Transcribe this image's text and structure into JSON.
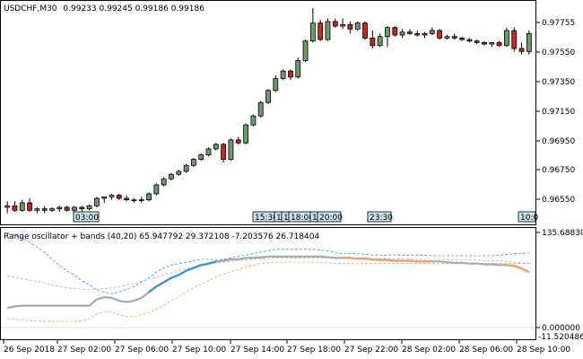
{
  "header": {
    "symbol": "USDCHF,M30",
    "ohlc": "0.99233 0.99245 0.99186 0.99186"
  },
  "indicator": {
    "label": "Range oscillator + bands (40,20) 65.947792 29.372108 -7.203576 26.718404"
  },
  "colors": {
    "bull": "#6b9b6b",
    "bear": "#cc2222",
    "upper_band": "#3b8ed8",
    "lower_band": "#f0a060",
    "mid_band": "#b0b0b0",
    "osc": "#a8a8a8",
    "osc_up": "#3b8ed8",
    "osc_down": "#f0a060",
    "marker_fill": "#c6e4ec"
  },
  "price_axis": {
    "ticks": [
      "0.97755",
      "0.97550",
      "0.97350",
      "0.97150",
      "0.96950",
      "0.96750",
      "0.96550"
    ]
  },
  "indicator_axis": {
    "top": "135.688305",
    "bottom": "0.000000",
    "lower": "-11.520486"
  },
  "time_axis": {
    "labels": [
      "26 Sep 2018",
      "27 Sep 02:00",
      "27 Sep 06:00",
      "27 Sep 10:00",
      "27 Sep 14:00",
      "27 Sep 18:00",
      "27 Sep 22:00",
      "28 Sep 02:00",
      "28 Sep 06:00",
      "28 Sep 10:00"
    ]
  },
  "time_markers": [
    "03:00",
    "15:30",
    "1",
    "1",
    "18:00",
    "1",
    "20:00",
    "23:30",
    "10:0"
  ],
  "chart_data": [
    {
      "type": "candlestick",
      "title": "USDCHF,M30",
      "candles": [
        {
          "o": 0.9654,
          "h": 0.9658,
          "l": 0.965,
          "c": 0.9655
        },
        {
          "o": 0.9655,
          "h": 0.9658,
          "l": 0.9651,
          "c": 0.9652
        },
        {
          "o": 0.9652,
          "h": 0.9659,
          "l": 0.9651,
          "c": 0.9657
        },
        {
          "o": 0.9657,
          "h": 0.966,
          "l": 0.9651,
          "c": 0.9652
        },
        {
          "o": 0.9652,
          "h": 0.9654,
          "l": 0.965,
          "c": 0.9653
        },
        {
          "o": 0.9653,
          "h": 0.9655,
          "l": 0.965,
          "c": 0.9652
        },
        {
          "o": 0.9652,
          "h": 0.9654,
          "l": 0.9651,
          "c": 0.9653
        },
        {
          "o": 0.9653,
          "h": 0.9655,
          "l": 0.9651,
          "c": 0.9654
        },
        {
          "o": 0.9654,
          "h": 0.9655,
          "l": 0.9651,
          "c": 0.9652
        },
        {
          "o": 0.9652,
          "h": 0.9655,
          "l": 0.9651,
          "c": 0.9654
        },
        {
          "o": 0.9654,
          "h": 0.9655,
          "l": 0.9651,
          "c": 0.9653
        },
        {
          "o": 0.9653,
          "h": 0.9656,
          "l": 0.9652,
          "c": 0.9655
        },
        {
          "o": 0.9655,
          "h": 0.9661,
          "l": 0.9654,
          "c": 0.966
        },
        {
          "o": 0.966,
          "h": 0.9661,
          "l": 0.9657,
          "c": 0.9661
        },
        {
          "o": 0.9661,
          "h": 0.9663,
          "l": 0.9659,
          "c": 0.9662
        },
        {
          "o": 0.9662,
          "h": 0.9663,
          "l": 0.9659,
          "c": 0.966
        },
        {
          "o": 0.966,
          "h": 0.9662,
          "l": 0.9658,
          "c": 0.9659
        },
        {
          "o": 0.9659,
          "h": 0.966,
          "l": 0.9657,
          "c": 0.9659
        },
        {
          "o": 0.9659,
          "h": 0.9661,
          "l": 0.9657,
          "c": 0.9659
        },
        {
          "o": 0.9659,
          "h": 0.9664,
          "l": 0.9658,
          "c": 0.9663
        },
        {
          "o": 0.9663,
          "h": 0.967,
          "l": 0.9662,
          "c": 0.9669
        },
        {
          "o": 0.9669,
          "h": 0.9674,
          "l": 0.9668,
          "c": 0.9673
        },
        {
          "o": 0.9673,
          "h": 0.9677,
          "l": 0.9672,
          "c": 0.9676
        },
        {
          "o": 0.9676,
          "h": 0.9679,
          "l": 0.9675,
          "c": 0.9678
        },
        {
          "o": 0.9678,
          "h": 0.9683,
          "l": 0.9677,
          "c": 0.9682
        },
        {
          "o": 0.9682,
          "h": 0.9687,
          "l": 0.9681,
          "c": 0.9686
        },
        {
          "o": 0.9686,
          "h": 0.969,
          "l": 0.9685,
          "c": 0.9689
        },
        {
          "o": 0.9689,
          "h": 0.9694,
          "l": 0.9688,
          "c": 0.9693
        },
        {
          "o": 0.9693,
          "h": 0.9697,
          "l": 0.9692,
          "c": 0.9696
        },
        {
          "o": 0.9696,
          "h": 0.9697,
          "l": 0.9684,
          "c": 0.9686
        },
        {
          "o": 0.9686,
          "h": 0.97,
          "l": 0.9685,
          "c": 0.9699
        },
        {
          "o": 0.9699,
          "h": 0.9701,
          "l": 0.9696,
          "c": 0.9697
        },
        {
          "o": 0.9697,
          "h": 0.971,
          "l": 0.9696,
          "c": 0.9709
        },
        {
          "o": 0.9709,
          "h": 0.9716,
          "l": 0.9708,
          "c": 0.9715
        },
        {
          "o": 0.9715,
          "h": 0.9725,
          "l": 0.9714,
          "c": 0.9724
        },
        {
          "o": 0.9724,
          "h": 0.9733,
          "l": 0.9723,
          "c": 0.9732
        },
        {
          "o": 0.9732,
          "h": 0.9742,
          "l": 0.9731,
          "c": 0.974
        },
        {
          "o": 0.974,
          "h": 0.9746,
          "l": 0.9739,
          "c": 0.9745
        },
        {
          "o": 0.9745,
          "h": 0.9746,
          "l": 0.9739,
          "c": 0.9741
        },
        {
          "o": 0.9741,
          "h": 0.9754,
          "l": 0.974,
          "c": 0.9752
        },
        {
          "o": 0.9752,
          "h": 0.9766,
          "l": 0.9751,
          "c": 0.9765
        },
        {
          "o": 0.9765,
          "h": 0.9787,
          "l": 0.9764,
          "c": 0.9777
        },
        {
          "o": 0.9777,
          "h": 0.9779,
          "l": 0.9765,
          "c": 0.9766
        },
        {
          "o": 0.9766,
          "h": 0.978,
          "l": 0.9765,
          "c": 0.9778
        },
        {
          "o": 0.9778,
          "h": 0.978,
          "l": 0.9774,
          "c": 0.9775
        },
        {
          "o": 0.9775,
          "h": 0.978,
          "l": 0.9773,
          "c": 0.9776
        },
        {
          "o": 0.9776,
          "h": 0.9778,
          "l": 0.977,
          "c": 0.9773
        },
        {
          "o": 0.9773,
          "h": 0.9778,
          "l": 0.9772,
          "c": 0.9777
        },
        {
          "o": 0.9777,
          "h": 0.9778,
          "l": 0.9766,
          "c": 0.9767
        },
        {
          "o": 0.9767,
          "h": 0.9772,
          "l": 0.976,
          "c": 0.9762
        },
        {
          "o": 0.9762,
          "h": 0.977,
          "l": 0.9761,
          "c": 0.9768
        },
        {
          "o": 0.9768,
          "h": 0.9775,
          "l": 0.9761,
          "c": 0.9774
        },
        {
          "o": 0.9774,
          "h": 0.9775,
          "l": 0.9768,
          "c": 0.9769
        },
        {
          "o": 0.9769,
          "h": 0.9773,
          "l": 0.9767,
          "c": 0.9771
        },
        {
          "o": 0.9771,
          "h": 0.9773,
          "l": 0.9769,
          "c": 0.977
        },
        {
          "o": 0.977,
          "h": 0.9772,
          "l": 0.9768,
          "c": 0.9769
        },
        {
          "o": 0.9769,
          "h": 0.9771,
          "l": 0.9767,
          "c": 0.977
        },
        {
          "o": 0.977,
          "h": 0.9774,
          "l": 0.9769,
          "c": 0.9772
        },
        {
          "o": 0.9772,
          "h": 0.9773,
          "l": 0.9766,
          "c": 0.9767
        },
        {
          "o": 0.9767,
          "h": 0.9769,
          "l": 0.9766,
          "c": 0.9768
        },
        {
          "o": 0.9768,
          "h": 0.977,
          "l": 0.9766,
          "c": 0.9767
        },
        {
          "o": 0.9767,
          "h": 0.9768,
          "l": 0.9765,
          "c": 0.9766
        },
        {
          "o": 0.9766,
          "h": 0.9767,
          "l": 0.9764,
          "c": 0.9765
        },
        {
          "o": 0.9765,
          "h": 0.9766,
          "l": 0.9763,
          "c": 0.9764
        },
        {
          "o": 0.9764,
          "h": 0.9765,
          "l": 0.9762,
          "c": 0.9763
        },
        {
          "o": 0.9763,
          "h": 0.9764,
          "l": 0.9761,
          "c": 0.9764
        },
        {
          "o": 0.9764,
          "h": 0.9765,
          "l": 0.9761,
          "c": 0.9762
        },
        {
          "o": 0.9762,
          "h": 0.9774,
          "l": 0.9761,
          "c": 0.9772
        },
        {
          "o": 0.9772,
          "h": 0.9774,
          "l": 0.9758,
          "c": 0.976
        },
        {
          "o": 0.976,
          "h": 0.9764,
          "l": 0.9756,
          "c": 0.9758
        },
        {
          "o": 0.9758,
          "h": 0.9772,
          "l": 0.9756,
          "c": 0.977
        }
      ],
      "ylim": [
        0.9645,
        0.979
      ]
    },
    {
      "type": "line",
      "title": "Range oscillator + bands (40,20)",
      "ylim": [
        -11.520486,
        135.688305
      ],
      "series": [
        {
          "role": "oscillator",
          "values": [
            30,
            32,
            33,
            33,
            33,
            33,
            33,
            33,
            33,
            33,
            33,
            33,
            42,
            45,
            44,
            40,
            38,
            40,
            44,
            52,
            60,
            66,
            72,
            76,
            82,
            86,
            90,
            92,
            95,
            96,
            98,
            98,
            100,
            100,
            101,
            102,
            102,
            102,
            102,
            102,
            102,
            102,
            102,
            101,
            100,
            100,
            100,
            99,
            99,
            98,
            97,
            97,
            96,
            96,
            96,
            95,
            95,
            95,
            95,
            94,
            93,
            93,
            92,
            92,
            91,
            91,
            90,
            90,
            89,
            85,
            80
          ]
        },
        {
          "role": "upper band",
          "values": [
            135,
            132,
            128,
            122,
            115,
            108,
            98,
            90,
            82,
            76,
            68,
            62,
            55,
            52,
            50,
            52,
            56,
            60,
            66,
            72,
            80,
            86,
            90,
            92,
            94,
            96,
            98,
            98,
            98,
            98,
            100,
            102,
            104,
            106,
            108,
            110,
            112,
            112,
            112,
            112,
            112,
            112,
            111,
            110,
            108,
            106,
            106,
            106,
            105,
            104,
            104,
            104,
            104,
            104,
            104,
            104,
            104,
            103,
            103,
            103,
            103,
            103,
            103,
            103,
            103,
            103,
            104,
            105,
            106,
            106,
            107
          ]
        },
        {
          "role": "middle band",
          "values": [
            75,
            73,
            71,
            69,
            67,
            65,
            62,
            60,
            58,
            57,
            56,
            55,
            56,
            57,
            58,
            60,
            62,
            64,
            67,
            70,
            73,
            76,
            79,
            82,
            85,
            87,
            89,
            91,
            93,
            94,
            95,
            96,
            97,
            98,
            99,
            99,
            100,
            100,
            100,
            100,
            100,
            100,
            100,
            100,
            100,
            100,
            100,
            100,
            100,
            99,
            99,
            99,
            99,
            99,
            99,
            98,
            98,
            98,
            98,
            98,
            97,
            97,
            97,
            97,
            96,
            96,
            96,
            95,
            94,
            93,
            92
          ]
        },
        {
          "role": "lower band",
          "values": [
            15,
            14,
            13,
            12,
            12,
            11,
            11,
            11,
            11,
            11,
            12,
            14,
            22,
            24,
            24,
            20,
            18,
            18,
            20,
            24,
            28,
            34,
            40,
            46,
            52,
            58,
            63,
            68,
            73,
            77,
            81,
            84,
            87,
            90,
            92,
            93,
            94,
            94,
            94,
            94,
            94,
            94,
            94,
            93,
            92,
            92,
            92,
            92,
            92,
            92,
            92,
            92,
            92,
            92,
            92,
            92,
            92,
            92,
            92,
            92,
            92,
            92,
            92,
            92,
            92,
            92,
            92,
            92,
            92,
            92,
            92
          ]
        }
      ]
    }
  ]
}
